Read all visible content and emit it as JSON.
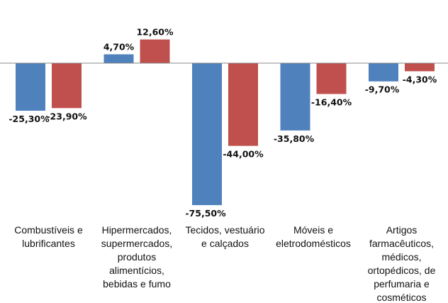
{
  "chart_data": {
    "type": "bar",
    "categories": [
      [
        "Combustíveis e",
        "lubrificantes"
      ],
      [
        "Hipermercados,",
        "supermercados,",
        "produtos",
        "alimentícios,",
        "bebidas e fumo"
      ],
      [
        "Tecidos, vestuário",
        "e calçados"
      ],
      [
        "Móveis e",
        "eletrodomésticos"
      ],
      [
        "Artigos",
        "farmacêuticos,",
        "médicos,",
        "ortopédicos, de",
        "perfumaria e",
        "cosméticos"
      ]
    ],
    "series": [
      {
        "values": [
          -25.3,
          4.7,
          -75.5,
          -35.8,
          -9.7
        ],
        "labels": [
          "-25,30%",
          "4,70%",
          "-75,50%",
          "-35,80%",
          "-9,70%"
        ],
        "color": "#4f81bd"
      },
      {
        "values": [
          -23.9,
          12.6,
          -44.0,
          -16.4,
          -4.3
        ],
        "labels": [
          "-23,90%",
          "12,60%",
          "-44,00%",
          "-16,40%",
          "-4,30%"
        ],
        "color": "#c0504d"
      }
    ],
    "title": "",
    "xlabel": "",
    "ylabel": "",
    "grid": false,
    "legend": "none",
    "unit": "%"
  }
}
